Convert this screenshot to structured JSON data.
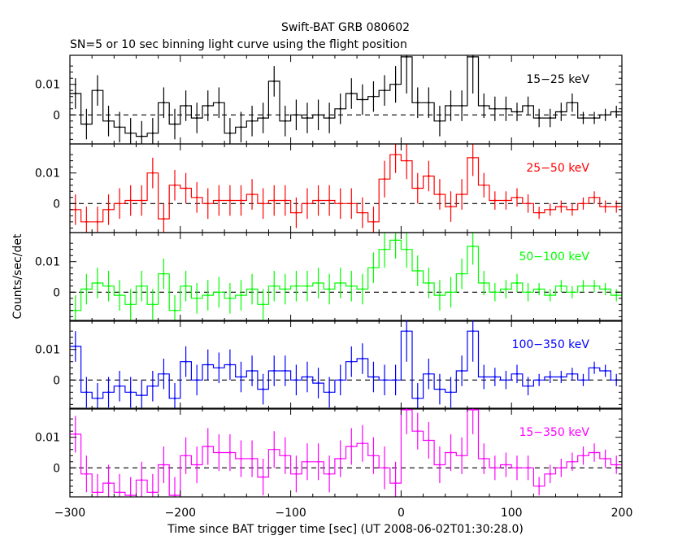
{
  "title": "Swift-BAT GRB 080602",
  "subtitle": "SN=5 or 10 sec binning light curve using the flight position",
  "ylabel": "Counts/sec/det",
  "xlabel": "Time since BAT trigger time [sec] (UT 2008-06-02T01:30:28.0)",
  "colors": {
    "15-25": "#000000",
    "25-50": "#ff0000",
    "50-100": "#00ff00",
    "100-350": "#0000ff",
    "15-350": "#ff00ff"
  },
  "chart_data": {
    "type": "line",
    "style": "histogram step plot with vertical error bars, dashed zero line in each panel",
    "xlim": [
      -300,
      200
    ],
    "ylim": [
      -0.0095,
      0.0195
    ],
    "x_ticks": [
      -300,
      -200,
      -100,
      0,
      100,
      200
    ],
    "x_tick_labels": [
      "−300",
      "−200",
      "−100",
      "0",
      "100",
      "200"
    ],
    "y_ticks": [
      0,
      0.01
    ],
    "y_tick_labels": [
      "0",
      "0.01"
    ],
    "grid": false,
    "panels": [
      {
        "band": "15-25",
        "label": "15−25 keV",
        "color": "#000000",
        "x": [
          -295,
          -285,
          -275,
          -265,
          -255,
          -245,
          -235,
          -225,
          -215,
          -205,
          -195,
          -185,
          -175,
          -165,
          -155,
          -145,
          -135,
          -125,
          -115,
          -105,
          -95,
          -85,
          -75,
          -65,
          -55,
          -45,
          -35,
          -25,
          -15,
          -5,
          5,
          15,
          25,
          35,
          45,
          55,
          65,
          75,
          85,
          95,
          105,
          115,
          125,
          135,
          145,
          155,
          165,
          175,
          185,
          195
        ],
        "y": [
          0.007,
          -0.003,
          0.008,
          -0.002,
          -0.004,
          -0.006,
          -0.007,
          -0.006,
          0.004,
          -0.003,
          0.003,
          -0.001,
          0.003,
          0.004,
          -0.006,
          -0.004,
          -0.002,
          -0.001,
          0.011,
          -0.002,
          0.0,
          -0.001,
          0.0,
          -0.001,
          0.002,
          0.007,
          0.005,
          0.006,
          0.008,
          0.01,
          0.019,
          0.004,
          0.004,
          -0.002,
          0.003,
          0.003,
          0.019,
          0.003,
          0.002,
          0.002,
          0.001,
          0.003,
          -0.001,
          -0.001,
          0.001,
          0.004,
          -0.001,
          -0.001,
          0.0,
          0.001
        ],
        "err": [
          0.005,
          0.005,
          0.005,
          0.005,
          0.005,
          0.005,
          0.005,
          0.005,
          0.005,
          0.005,
          0.005,
          0.005,
          0.005,
          0.005,
          0.005,
          0.005,
          0.005,
          0.005,
          0.005,
          0.005,
          0.005,
          0.005,
          0.005,
          0.005,
          0.005,
          0.005,
          0.005,
          0.005,
          0.005,
          0.006,
          0.012,
          0.005,
          0.005,
          0.005,
          0.005,
          0.005,
          0.012,
          0.004,
          0.004,
          0.004,
          0.003,
          0.003,
          0.003,
          0.003,
          0.003,
          0.003,
          0.002,
          0.002,
          0.002,
          0.002
        ]
      },
      {
        "band": "25-50",
        "label": "25−50 keV",
        "color": "#ff0000",
        "x": [
          -295,
          -285,
          -275,
          -265,
          -255,
          -245,
          -235,
          -225,
          -215,
          -205,
          -195,
          -185,
          -175,
          -165,
          -155,
          -145,
          -135,
          -125,
          -115,
          -105,
          -95,
          -85,
          -75,
          -65,
          -55,
          -45,
          -35,
          -25,
          -15,
          -5,
          5,
          15,
          25,
          35,
          45,
          55,
          65,
          75,
          85,
          95,
          105,
          115,
          125,
          135,
          145,
          155,
          165,
          175,
          185,
          195
        ],
        "y": [
          -0.002,
          -0.006,
          -0.006,
          -0.002,
          0.0,
          0.001,
          0.001,
          0.01,
          -0.005,
          0.006,
          0.005,
          0.002,
          0.0,
          0.001,
          0.001,
          0.001,
          0.003,
          0.0,
          0.001,
          0.001,
          -0.003,
          0.0,
          0.001,
          0.001,
          0.0,
          0.0,
          -0.003,
          -0.006,
          0.008,
          0.016,
          0.014,
          0.005,
          0.009,
          0.003,
          -0.001,
          0.003,
          0.015,
          0.006,
          0.001,
          0.001,
          0.002,
          0.0,
          -0.003,
          -0.002,
          -0.001,
          -0.002,
          0.0,
          0.002,
          -0.001,
          -0.001
        ],
        "err": [
          0.005,
          0.005,
          0.005,
          0.005,
          0.005,
          0.005,
          0.005,
          0.005,
          0.005,
          0.005,
          0.005,
          0.005,
          0.005,
          0.005,
          0.005,
          0.005,
          0.005,
          0.005,
          0.005,
          0.005,
          0.005,
          0.005,
          0.005,
          0.005,
          0.005,
          0.005,
          0.005,
          0.005,
          0.006,
          0.006,
          0.006,
          0.005,
          0.005,
          0.005,
          0.005,
          0.005,
          0.006,
          0.004,
          0.003,
          0.003,
          0.003,
          0.003,
          0.002,
          0.002,
          0.002,
          0.002,
          0.002,
          0.002,
          0.002,
          0.002
        ]
      },
      {
        "band": "50-100",
        "label": "50−100 keV",
        "color": "#00ff00",
        "x": [
          -295,
          -285,
          -275,
          -265,
          -255,
          -245,
          -235,
          -225,
          -215,
          -205,
          -195,
          -185,
          -175,
          -165,
          -155,
          -145,
          -135,
          -125,
          -115,
          -105,
          -95,
          -85,
          -75,
          -65,
          -55,
          -45,
          -35,
          -25,
          -15,
          -5,
          5,
          15,
          25,
          35,
          45,
          55,
          65,
          75,
          85,
          95,
          105,
          115,
          125,
          135,
          145,
          155,
          165,
          175,
          185,
          195
        ],
        "y": [
          -0.006,
          0.001,
          0.003,
          0.002,
          -0.001,
          -0.004,
          0.002,
          -0.004,
          0.006,
          -0.006,
          0.002,
          -0.002,
          -0.001,
          0.0,
          -0.002,
          -0.001,
          0.001,
          -0.004,
          0.002,
          0.001,
          0.002,
          0.002,
          0.003,
          0.001,
          0.003,
          0.002,
          0.001,
          0.008,
          0.014,
          0.017,
          0.014,
          0.007,
          0.003,
          -0.001,
          0.0,
          0.006,
          0.015,
          0.003,
          0.0,
          0.001,
          0.003,
          0.0,
          0.001,
          -0.001,
          0.002,
          0.0,
          0.002,
          0.002,
          0.001,
          -0.001
        ],
        "err": [
          0.005,
          0.005,
          0.005,
          0.005,
          0.005,
          0.005,
          0.005,
          0.005,
          0.005,
          0.005,
          0.005,
          0.005,
          0.005,
          0.005,
          0.005,
          0.005,
          0.005,
          0.005,
          0.005,
          0.005,
          0.005,
          0.005,
          0.005,
          0.005,
          0.005,
          0.005,
          0.005,
          0.005,
          0.006,
          0.006,
          0.006,
          0.005,
          0.005,
          0.005,
          0.005,
          0.005,
          0.006,
          0.004,
          0.003,
          0.003,
          0.003,
          0.003,
          0.002,
          0.002,
          0.002,
          0.002,
          0.002,
          0.002,
          0.002,
          0.002
        ]
      },
      {
        "band": "100-350",
        "label": "100−350 keV",
        "color": "#0000ff",
        "x": [
          -295,
          -285,
          -275,
          -265,
          -255,
          -245,
          -235,
          -225,
          -215,
          -205,
          -195,
          -185,
          -175,
          -165,
          -155,
          -145,
          -135,
          -125,
          -115,
          -105,
          -95,
          -85,
          -75,
          -65,
          -55,
          -45,
          -35,
          -25,
          -15,
          -5,
          5,
          15,
          25,
          35,
          45,
          55,
          65,
          75,
          85,
          95,
          105,
          115,
          125,
          135,
          145,
          155,
          165,
          175,
          185,
          195
        ],
        "y": [
          0.011,
          -0.004,
          -0.006,
          -0.004,
          -0.002,
          -0.004,
          -0.005,
          -0.002,
          0.002,
          -0.006,
          0.006,
          0.0,
          0.005,
          0.004,
          0.005,
          0.001,
          0.003,
          -0.003,
          0.003,
          0.003,
          0.0,
          0.001,
          -0.001,
          -0.004,
          0.0,
          0.006,
          0.007,
          0.001,
          0.0,
          0.0,
          0.016,
          -0.006,
          0.002,
          -0.003,
          -0.004,
          0.003,
          0.016,
          0.001,
          0.001,
          0.0,
          0.002,
          -0.002,
          0.0,
          0.001,
          0.001,
          0.002,
          0.0,
          0.004,
          0.003,
          0.0
        ],
        "err": [
          0.005,
          0.005,
          0.005,
          0.005,
          0.005,
          0.005,
          0.005,
          0.005,
          0.005,
          0.005,
          0.005,
          0.005,
          0.005,
          0.005,
          0.005,
          0.005,
          0.005,
          0.005,
          0.005,
          0.005,
          0.005,
          0.005,
          0.005,
          0.005,
          0.005,
          0.005,
          0.005,
          0.005,
          0.005,
          0.005,
          0.01,
          0.005,
          0.005,
          0.005,
          0.005,
          0.005,
          0.01,
          0.004,
          0.003,
          0.003,
          0.003,
          0.003,
          0.002,
          0.002,
          0.002,
          0.002,
          0.002,
          0.002,
          0.002,
          0.002
        ]
      },
      {
        "band": "15-350",
        "label": "15−350 keV",
        "color": "#ff00ff",
        "x": [
          -295,
          -285,
          -275,
          -265,
          -255,
          -245,
          -235,
          -225,
          -215,
          -205,
          -195,
          -185,
          -175,
          -165,
          -155,
          -145,
          -135,
          -125,
          -115,
          -105,
          -95,
          -85,
          -75,
          -65,
          -55,
          -45,
          -35,
          -25,
          -15,
          -5,
          5,
          15,
          25,
          35,
          45,
          55,
          65,
          75,
          85,
          95,
          105,
          115,
          125,
          135,
          145,
          155,
          165,
          175,
          185,
          195
        ],
        "y": [
          0.011,
          -0.002,
          -0.008,
          -0.005,
          -0.008,
          -0.009,
          -0.004,
          -0.008,
          0.001,
          -0.009,
          0.004,
          0.001,
          0.007,
          0.005,
          0.005,
          0.003,
          0.003,
          -0.003,
          0.006,
          0.004,
          -0.002,
          0.002,
          0.002,
          -0.002,
          0.003,
          0.007,
          0.008,
          0.004,
          0.0,
          -0.005,
          0.019,
          0.012,
          0.009,
          0.001,
          0.005,
          0.004,
          0.019,
          0.003,
          0.0,
          0.001,
          0.0,
          0.0,
          -0.006,
          -0.002,
          0.0,
          0.002,
          0.004,
          0.005,
          0.003,
          0.001
        ],
        "err": [
          0.006,
          0.006,
          0.006,
          0.006,
          0.006,
          0.006,
          0.006,
          0.006,
          0.006,
          0.006,
          0.006,
          0.006,
          0.006,
          0.006,
          0.006,
          0.006,
          0.006,
          0.006,
          0.006,
          0.006,
          0.006,
          0.006,
          0.006,
          0.006,
          0.006,
          0.006,
          0.006,
          0.006,
          0.007,
          0.007,
          0.008,
          0.006,
          0.006,
          0.006,
          0.006,
          0.006,
          0.008,
          0.005,
          0.004,
          0.004,
          0.004,
          0.004,
          0.003,
          0.003,
          0.003,
          0.003,
          0.003,
          0.003,
          0.003,
          0.003
        ]
      }
    ]
  }
}
